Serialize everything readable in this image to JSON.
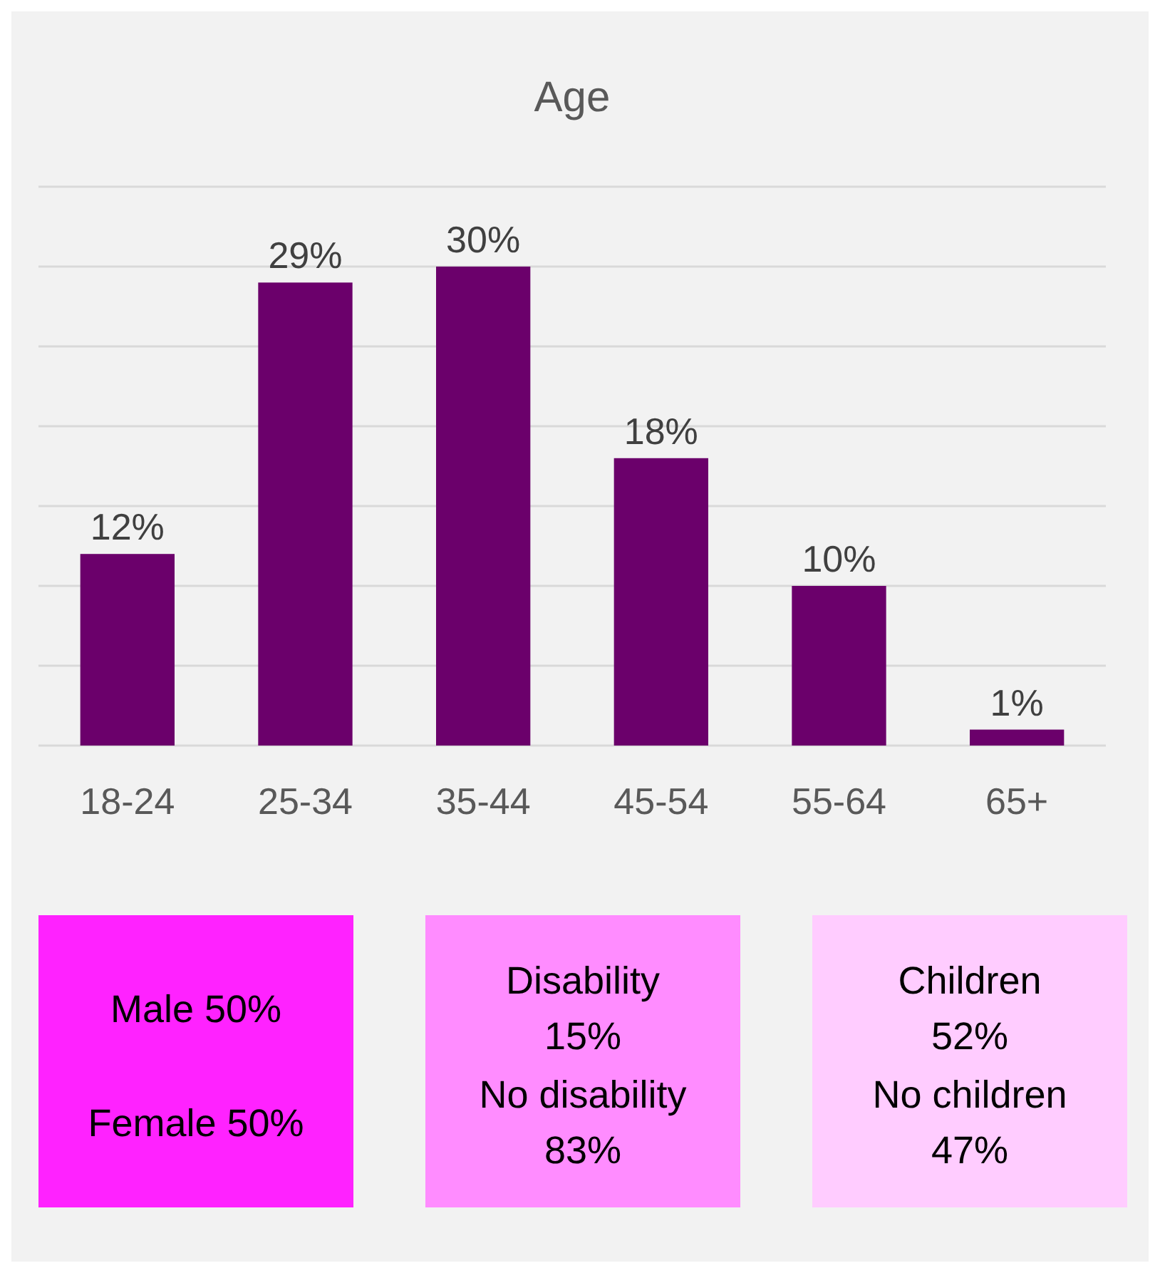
{
  "chart_data": [
    {
      "type": "bar",
      "title": "Age",
      "categories": [
        "18-24",
        "25-34",
        "35-44",
        "45-54",
        "55-64",
        "65+"
      ],
      "values": [
        12,
        29,
        30,
        18,
        10,
        1
      ],
      "value_labels": [
        "12%",
        "29%",
        "30%",
        "18%",
        "10%",
        "1%"
      ],
      "color": "#6b006b",
      "ylim": [
        0,
        35
      ],
      "yticks": [
        {
          "value": 0,
          "label": null
        },
        {
          "value": 5,
          "label": null
        },
        {
          "value": 10,
          "label": null
        },
        {
          "value": 15,
          "label": null
        },
        {
          "value": 20,
          "label": null
        },
        {
          "value": 25,
          "label": null
        },
        {
          "value": 30,
          "label": null
        },
        {
          "value": 35,
          "label": null
        }
      ],
      "grid": "y",
      "tick_labels": "x"
    },
    {
      "type": "other",
      "color": "#ff22ff",
      "annotations": [
        "Male 50%",
        "Female 50%"
      ]
    },
    {
      "type": "other",
      "color": "#ff8cff",
      "annotations": [
        "Disability\n15%",
        "No disability\n83%"
      ]
    },
    {
      "type": "other",
      "color": "#ffccff",
      "annotations": [
        "Children\n52%",
        "No children\n47%"
      ]
    }
  ]
}
